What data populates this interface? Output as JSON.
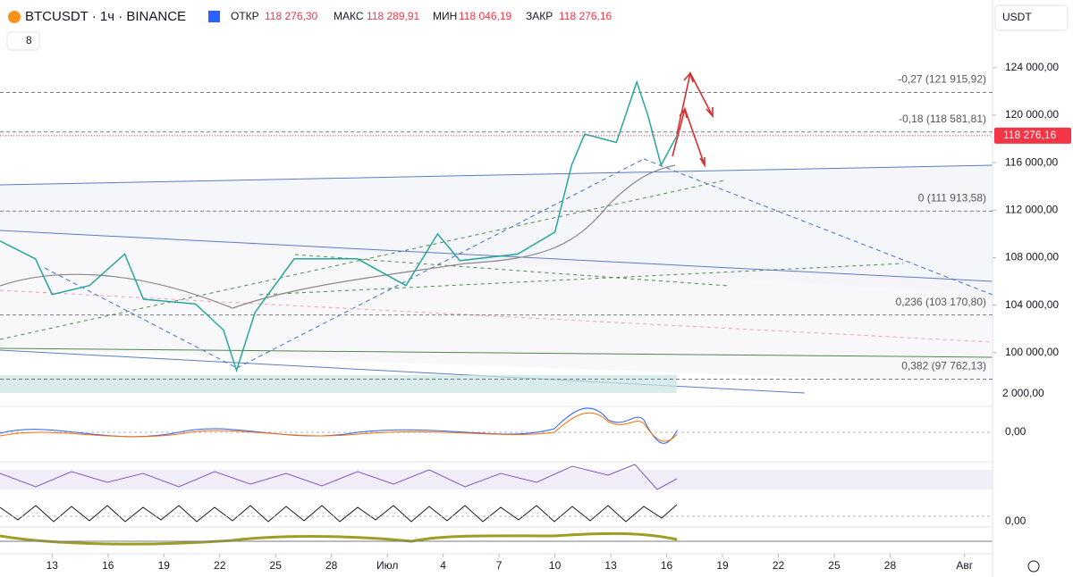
{
  "chart_data": {
    "type": "line",
    "header": {
      "symbol": "BTCUSDT · 1ч · BINANCE",
      "open_label": "ОТКР",
      "open": "118 276,30",
      "high_label": "МАКС",
      "high": "118 289,91",
      "low_label": "МИН",
      "low": "118 046,19",
      "close_label": "ЗАКР",
      "close": "118 276,16",
      "indicator_count": "8"
    },
    "currency": "USDT",
    "x": [
      10.2,
      12.1,
      13,
      15,
      16.9,
      17.9,
      20.7,
      22.2,
      22.9,
      23.9,
      26,
      29.4,
      32,
      33.7,
      34.9,
      38,
      40,
      40.9,
      41.6,
      43.3,
      44.4,
      45,
      45.7,
      46.6
    ],
    "values": [
      109400,
      107900,
      104900,
      105650,
      108300,
      104500,
      104100,
      101900,
      98500,
      103400,
      107900,
      107900,
      105650,
      110000,
      107750,
      108300,
      110150,
      115800,
      118400,
      117700,
      122800,
      119950,
      115800,
      118400
    ],
    "color": "#26a69a",
    "xlim": [
      10.2,
      63.5
    ],
    "ylim": [
      96600,
      129700
    ],
    "xticks": [
      13,
      16,
      19,
      22,
      25,
      28,
      {
        "value": 31,
        "label": "Июл"
      },
      {
        "value": 34,
        "label": "4"
      },
      {
        "value": 37,
        "label": "7"
      },
      {
        "value": 40,
        "label": "10"
      },
      {
        "value": 43,
        "label": "13"
      },
      {
        "value": 46,
        "label": "16"
      },
      {
        "value": 49,
        "label": "19"
      },
      {
        "value": 52,
        "label": "22"
      },
      {
        "value": 55,
        "label": "25"
      },
      {
        "value": 58,
        "label": "28"
      },
      {
        "value": 62,
        "label": "Авг"
      }
    ],
    "yticks": [
      {
        "value": 124000,
        "label": "124 000,00"
      },
      {
        "value": 120000,
        "label": "120 000,00"
      },
      {
        "value": 116000,
        "label": "116 000,00"
      },
      {
        "value": 112000,
        "label": "112 000,00"
      },
      {
        "value": 108000,
        "label": "108 000,00"
      },
      {
        "value": 104000,
        "label": "104 000,00"
      },
      {
        "value": 100000,
        "label": "100 000,00"
      }
    ],
    "fib_levels": [
      {
        "value": 121915.92,
        "label": "-0,27 (121 915,92)"
      },
      {
        "value": 118581.81,
        "label": "-0,18 (118 581,81)"
      },
      {
        "value": 111913.58,
        "label": "0 (111 913,58)"
      },
      {
        "value": 103170.8,
        "label": "0,236 (103 170,80)"
      },
      {
        "value": 97762.13,
        "label": "0,382 (97 762,13)"
      }
    ],
    "last_price": {
      "value": 118276.16,
      "label": "118 276,16"
    },
    "volume_axis_label": "2 000,00",
    "macd_zero_label": "0,00",
    "osc_zero_label": "0,00"
  }
}
